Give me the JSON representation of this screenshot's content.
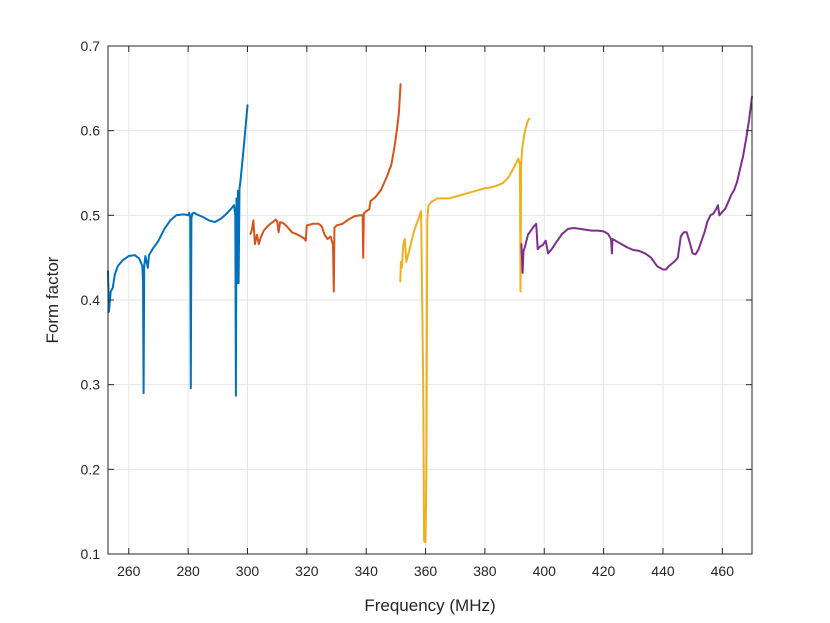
{
  "chart_data": {
    "type": "line",
    "title": "",
    "xlabel": "Frequency (MHz)",
    "ylabel": "Form factor",
    "xlim": [
      253,
      470
    ],
    "ylim": [
      0.1,
      0.7
    ],
    "xticks": [
      260,
      280,
      300,
      320,
      340,
      360,
      380,
      400,
      420,
      440,
      460
    ],
    "yticks": [
      0.1,
      0.2,
      0.3,
      0.4,
      0.5,
      0.6,
      0.7
    ],
    "grid": true,
    "legend": "none",
    "series": [
      {
        "color": "#0072BD",
        "points": [
          [
            253.0,
            0.434
          ],
          [
            253.3,
            0.386
          ],
          [
            253.9,
            0.41
          ],
          [
            254.6,
            0.414
          ],
          [
            255.3,
            0.43
          ],
          [
            256.3,
            0.44
          ],
          [
            258,
            0.447
          ],
          [
            260,
            0.452
          ],
          [
            262,
            0.453
          ],
          [
            263.5,
            0.449
          ],
          [
            264.6,
            0.44
          ],
          [
            264.8,
            0.422
          ],
          [
            265,
            0.29
          ],
          [
            265.2,
            0.44
          ],
          [
            265.6,
            0.452
          ],
          [
            266.0,
            0.445
          ],
          [
            266.4,
            0.438
          ],
          [
            266.8,
            0.453
          ],
          [
            268,
            0.46
          ],
          [
            270,
            0.47
          ],
          [
            272,
            0.484
          ],
          [
            274,
            0.494
          ],
          [
            276,
            0.5
          ],
          [
            278,
            0.501
          ],
          [
            279,
            0.501
          ],
          [
            280,
            0.5
          ],
          [
            280.4,
            0.503
          ],
          [
            280.7,
            0.498
          ],
          [
            280.9,
            0.296
          ],
          [
            281.1,
            0.496
          ],
          [
            281.4,
            0.502
          ],
          [
            282,
            0.503
          ],
          [
            283,
            0.501
          ],
          [
            285,
            0.498
          ],
          [
            287,
            0.494
          ],
          [
            289,
            0.492
          ],
          [
            291,
            0.496
          ],
          [
            293,
            0.502
          ],
          [
            294.5,
            0.508
          ],
          [
            295.5,
            0.512
          ],
          [
            295.9,
            0.5
          ],
          [
            296.1,
            0.287
          ],
          [
            296.3,
            0.52
          ],
          [
            296.6,
            0.42
          ],
          [
            296.8,
            0.529
          ],
          [
            297.0,
            0.42
          ],
          [
            297.3,
            0.532
          ],
          [
            297.6,
            0.54
          ],
          [
            298.2,
            0.56
          ],
          [
            299.0,
            0.59
          ],
          [
            300.0,
            0.63
          ]
        ]
      },
      {
        "color": "#D95319",
        "points": [
          [
            301.0,
            0.478
          ],
          [
            301.5,
            0.483
          ],
          [
            302.0,
            0.494
          ],
          [
            302.5,
            0.466
          ],
          [
            303.2,
            0.477
          ],
          [
            303.8,
            0.466
          ],
          [
            304.5,
            0.474
          ],
          [
            305.5,
            0.482
          ],
          [
            307,
            0.488
          ],
          [
            308.5,
            0.492
          ],
          [
            309.5,
            0.495
          ],
          [
            310.0,
            0.493
          ],
          [
            310.5,
            0.48
          ],
          [
            311.0,
            0.492
          ],
          [
            312,
            0.491
          ],
          [
            313,
            0.488
          ],
          [
            315,
            0.48
          ],
          [
            317,
            0.477
          ],
          [
            319,
            0.473
          ],
          [
            319.6,
            0.47
          ],
          [
            320,
            0.488
          ],
          [
            321,
            0.489
          ],
          [
            322,
            0.49
          ],
          [
            324,
            0.49
          ],
          [
            325,
            0.487
          ],
          [
            326,
            0.477
          ],
          [
            327,
            0.472
          ],
          [
            328,
            0.475
          ],
          [
            328.8,
            0.465
          ],
          [
            329.1,
            0.41
          ],
          [
            329.3,
            0.485
          ],
          [
            330,
            0.488
          ],
          [
            332,
            0.49
          ],
          [
            334,
            0.495
          ],
          [
            336,
            0.499
          ],
          [
            338,
            0.5
          ],
          [
            338.8,
            0.5
          ],
          [
            339.0,
            0.45
          ],
          [
            339.2,
            0.502
          ],
          [
            340,
            0.505
          ],
          [
            341,
            0.507
          ],
          [
            341.5,
            0.517
          ],
          [
            343,
            0.521
          ],
          [
            345,
            0.53
          ],
          [
            347,
            0.546
          ],
          [
            348.5,
            0.56
          ],
          [
            349.5,
            0.58
          ],
          [
            350.3,
            0.6
          ],
          [
            351.0,
            0.62
          ],
          [
            351.6,
            0.655
          ]
        ]
      },
      {
        "color": "#EDB120",
        "points": [
          [
            351.5,
            0.422
          ],
          [
            351.7,
            0.445
          ],
          [
            352.0,
            0.438
          ],
          [
            352.5,
            0.465
          ],
          [
            353.0,
            0.472
          ],
          [
            353.5,
            0.445
          ],
          [
            354.5,
            0.458
          ],
          [
            356.0,
            0.48
          ],
          [
            357.5,
            0.495
          ],
          [
            358.5,
            0.505
          ],
          [
            359.2,
            0.3
          ],
          [
            359.5,
            0.115
          ],
          [
            360.0,
            0.114
          ],
          [
            360.3,
            0.2
          ],
          [
            360.6,
            0.495
          ],
          [
            361,
            0.512
          ],
          [
            362,
            0.516
          ],
          [
            364,
            0.52
          ],
          [
            366,
            0.52
          ],
          [
            368,
            0.52
          ],
          [
            370,
            0.522
          ],
          [
            372,
            0.524
          ],
          [
            374,
            0.526
          ],
          [
            376,
            0.528
          ],
          [
            378,
            0.53
          ],
          [
            380,
            0.532
          ],
          [
            382,
            0.533
          ],
          [
            384,
            0.535
          ],
          [
            386,
            0.538
          ],
          [
            388,
            0.545
          ],
          [
            390,
            0.558
          ],
          [
            391.3,
            0.567
          ],
          [
            391.8,
            0.56
          ],
          [
            392.0,
            0.41
          ],
          [
            392.2,
            0.56
          ],
          [
            392.6,
            0.58
          ],
          [
            393.5,
            0.6
          ],
          [
            394.5,
            0.612
          ],
          [
            395.0,
            0.614
          ]
        ]
      },
      {
        "color": "#7E2F8E",
        "points": [
          [
            392.3,
            0.466
          ],
          [
            392.7,
            0.432
          ],
          [
            393.0,
            0.458
          ],
          [
            393.5,
            0.463
          ],
          [
            394.5,
            0.477
          ],
          [
            395.5,
            0.482
          ],
          [
            396.5,
            0.487
          ],
          [
            397.3,
            0.49
          ],
          [
            397.8,
            0.46
          ],
          [
            398.5,
            0.463
          ],
          [
            399.5,
            0.465
          ],
          [
            400.5,
            0.47
          ],
          [
            401.3,
            0.455
          ],
          [
            402.5,
            0.46
          ],
          [
            404,
            0.468
          ],
          [
            406,
            0.478
          ],
          [
            408,
            0.484
          ],
          [
            410,
            0.485
          ],
          [
            412,
            0.484
          ],
          [
            414,
            0.483
          ],
          [
            416,
            0.482
          ],
          [
            418,
            0.482
          ],
          [
            420,
            0.481
          ],
          [
            421.5,
            0.478
          ],
          [
            422.5,
            0.472
          ],
          [
            422.8,
            0.455
          ],
          [
            423.0,
            0.472
          ],
          [
            424,
            0.47
          ],
          [
            426,
            0.466
          ],
          [
            428,
            0.462
          ],
          [
            430,
            0.459
          ],
          [
            432,
            0.458
          ],
          [
            434,
            0.455
          ],
          [
            436,
            0.45
          ],
          [
            438,
            0.44
          ],
          [
            440,
            0.436
          ],
          [
            441,
            0.436
          ],
          [
            442,
            0.44
          ],
          [
            443,
            0.443
          ],
          [
            444,
            0.446
          ],
          [
            445,
            0.45
          ],
          [
            446,
            0.475
          ],
          [
            447,
            0.48
          ],
          [
            448,
            0.48
          ],
          [
            449,
            0.468
          ],
          [
            450,
            0.455
          ],
          [
            451,
            0.454
          ],
          [
            452,
            0.46
          ],
          [
            453,
            0.47
          ],
          [
            454,
            0.48
          ],
          [
            455,
            0.493
          ],
          [
            456,
            0.5
          ],
          [
            457,
            0.502
          ],
          [
            458,
            0.508
          ],
          [
            458.5,
            0.512
          ],
          [
            459,
            0.5
          ],
          [
            460,
            0.504
          ],
          [
            461,
            0.508
          ],
          [
            462,
            0.516
          ],
          [
            463,
            0.524
          ],
          [
            464,
            0.53
          ],
          [
            465,
            0.54
          ],
          [
            466,
            0.555
          ],
          [
            467,
            0.57
          ],
          [
            468,
            0.59
          ],
          [
            469,
            0.612
          ],
          [
            470,
            0.64
          ]
        ]
      }
    ]
  }
}
